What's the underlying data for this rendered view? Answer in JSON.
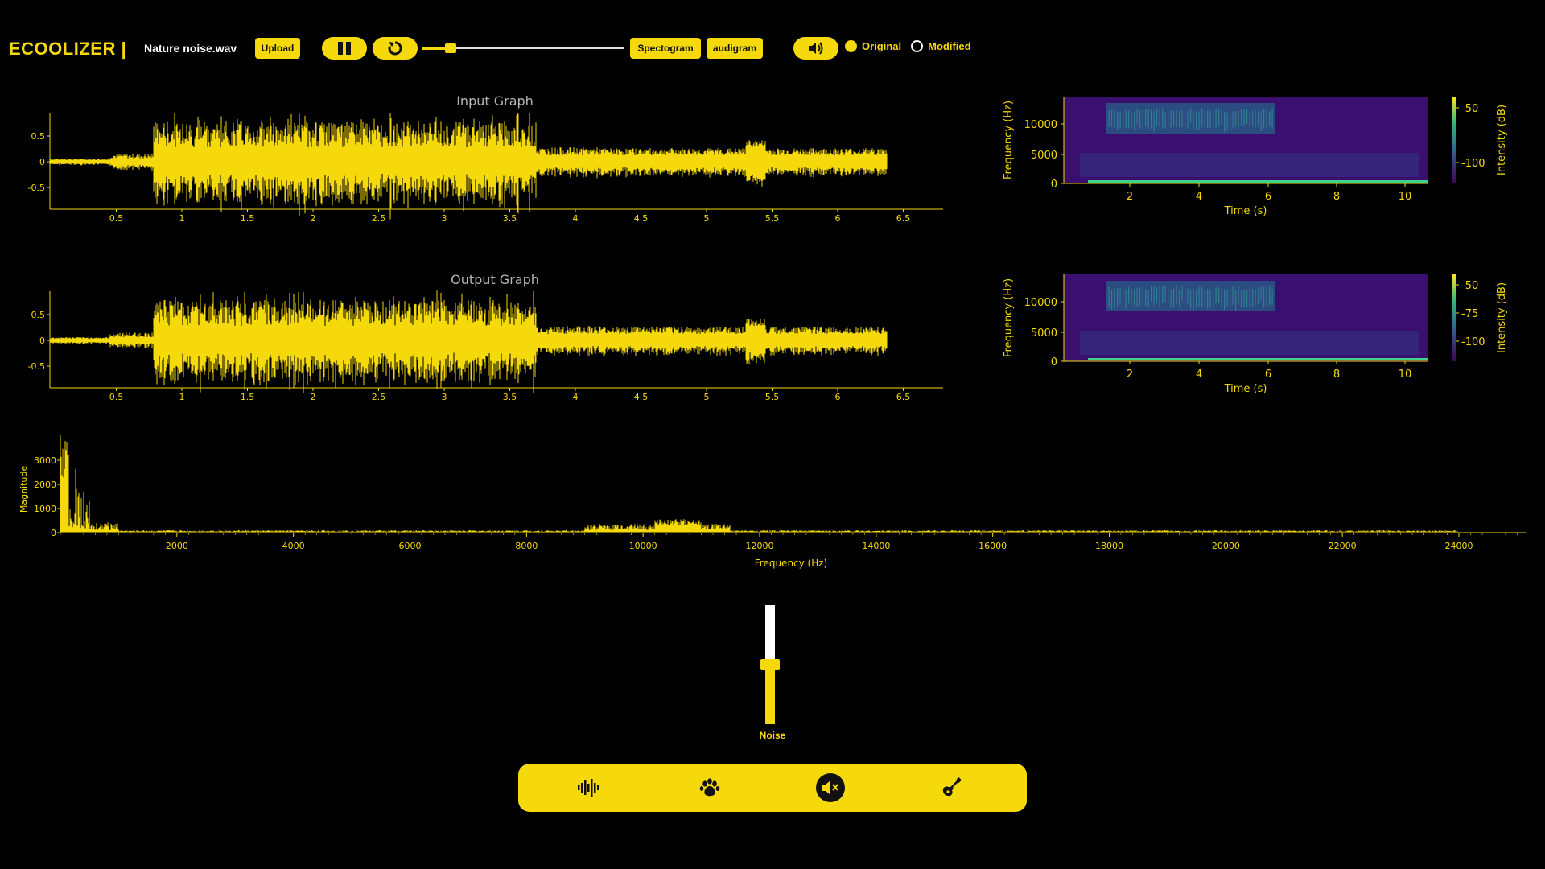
{
  "app": {
    "title": "ECOOLIZER |"
  },
  "file": {
    "name": "Nature noise.wav"
  },
  "toolbar": {
    "upload_label": "Upload",
    "spectrogram_label": "Spectogram",
    "audiogram_label": "audigram",
    "playback_progress": 0.14
  },
  "signal_choice": {
    "options": [
      {
        "label": "Original",
        "selected": true
      },
      {
        "label": "Modified",
        "selected": false
      }
    ]
  },
  "input_graph": {
    "title": "Input Graph",
    "xticks": [
      "0.5",
      "1",
      "1.5",
      "2",
      "2.5",
      "3",
      "3.5",
      "4",
      "4.5",
      "5",
      "5.5",
      "6",
      "6.5"
    ],
    "yticks": [
      "0.5",
      "0",
      "-0.5"
    ]
  },
  "output_graph": {
    "title": "Output Graph",
    "xticks": [
      "0.5",
      "1",
      "1.5",
      "2",
      "2.5",
      "3",
      "3.5",
      "4",
      "4.5",
      "5",
      "5.5",
      "6",
      "6.5"
    ],
    "yticks": [
      "0.5",
      "0",
      "-0.5"
    ]
  },
  "spectrogram_top": {
    "ylabel": "Frequency (Hz)",
    "xlabel": "Time (s)",
    "colorbar_label": "Intensity (dB)",
    "yticks": [
      "10000",
      "5000",
      "0"
    ],
    "xticks": [
      "2",
      "4",
      "6",
      "8",
      "10"
    ],
    "cticks": [
      "-50",
      "-100"
    ]
  },
  "spectrogram_bottom": {
    "ylabel": "Frequency (Hz)",
    "xlabel": "Time (s)",
    "colorbar_label": "Intensity (dB)",
    "yticks": [
      "10000",
      "5000",
      "0"
    ],
    "xticks": [
      "2",
      "4",
      "6",
      "8",
      "10"
    ],
    "cticks": [
      "-50",
      "-75",
      "-100"
    ]
  },
  "frequency_plot": {
    "ylabel": "Magnitude",
    "xlabel": "Frequency (Hz)",
    "yticks": [
      "3000",
      "2000",
      "1000",
      "0"
    ],
    "xticks": [
      "2000",
      "4000",
      "6000",
      "8000",
      "10000",
      "12000",
      "14000",
      "16000",
      "18000",
      "20000",
      "22000",
      "24000"
    ]
  },
  "equalizer": {
    "slider_label": "Noise",
    "slider_level": 0.5
  },
  "modes": [
    {
      "name": "voice",
      "icon": "waveform-icon",
      "active": false
    },
    {
      "name": "animals",
      "icon": "paw-icon",
      "active": false
    },
    {
      "name": "noise",
      "icon": "mute-icon",
      "active": true
    },
    {
      "name": "music",
      "icon": "guitar-icon",
      "active": false
    }
  ],
  "colors": {
    "accent": "#f5d90a",
    "background": "#000000",
    "spectrogram_bg": "#3b0f70"
  }
}
